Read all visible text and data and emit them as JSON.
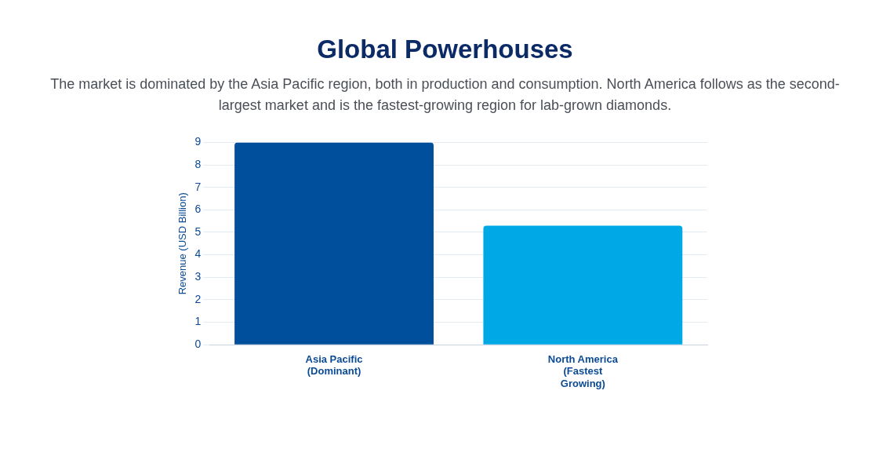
{
  "chart_data": {
    "type": "bar",
    "title": "Global Powerhouses",
    "subtitle": "The market is dominated by the Asia Pacific region, both in production and consumption. North America follows as the second-largest market and is the fastest-growing region for lab-grown diamonds.",
    "ylabel": "Revenue (USD Billion)",
    "categories": [
      "Asia Pacific (Dominant)",
      "North America (Fastest Growing)"
    ],
    "values": [
      9,
      5.3
    ],
    "colors": [
      "#004f9c",
      "#00a8e6"
    ],
    "ylim": [
      0,
      9
    ],
    "yticks": [
      0,
      1,
      2,
      3,
      4,
      5,
      6,
      7,
      8,
      9
    ],
    "grid": "y",
    "legend": false
  }
}
